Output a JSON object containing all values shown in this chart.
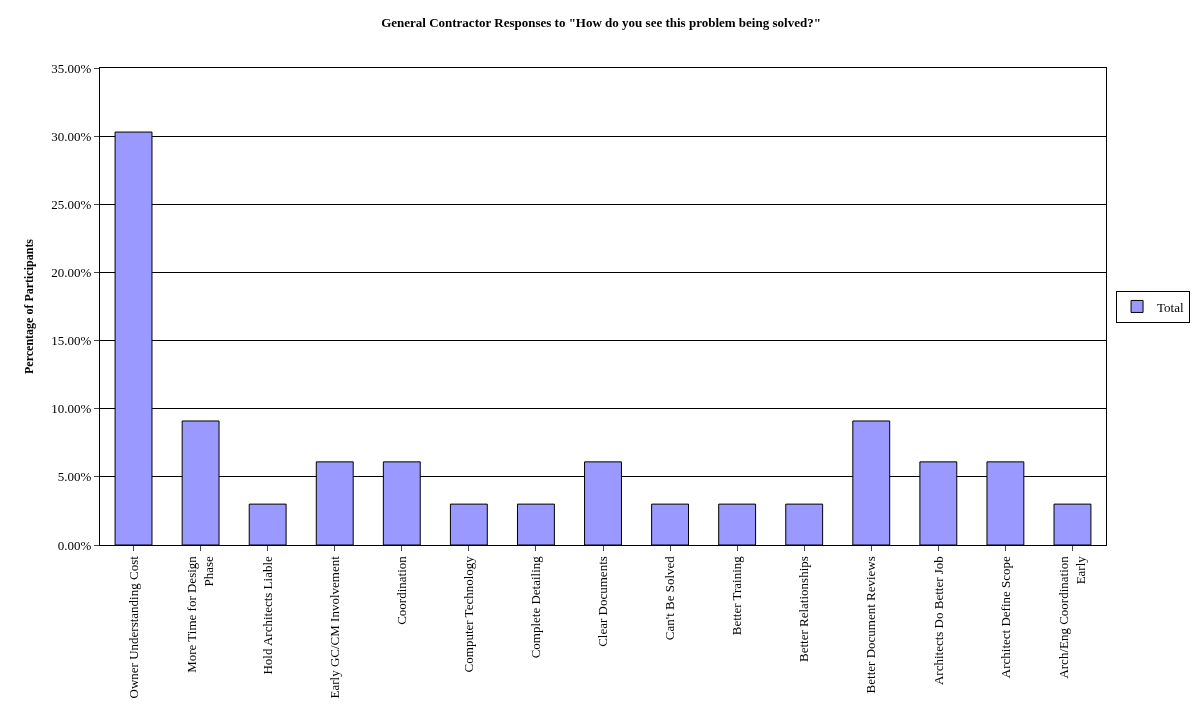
{
  "chart_data": {
    "type": "bar",
    "title": "General Contractor Responses to \"How do you see this problem being solved?\"",
    "ylabel": "Percentage of Participants",
    "categories": [
      "Owner Understanding Cost",
      "More Time for Design Phase",
      "Hold Architects Liable",
      "Early GC/CM Involvement",
      "Coordination",
      "Computer Technology",
      "Complete Detailing",
      "Clear Documents",
      "Can't Be Solved",
      "Better Training",
      "Better Relationships",
      "Better Document Reviews",
      "Architects Do Better Job",
      "Architect Define Scope",
      "Arch/Eng Coordination Early"
    ],
    "series": [
      {
        "name": "Total",
        "color": "#9999ff",
        "values": [
          30.3,
          9.1,
          3.0,
          6.1,
          6.1,
          3.0,
          3.0,
          6.1,
          3.0,
          3.0,
          3.0,
          9.1,
          6.1,
          6.1,
          3.0
        ]
      }
    ],
    "ylim": [
      0,
      35
    ],
    "yticks": [
      {
        "value": 0,
        "label": "0.00%"
      },
      {
        "value": 5,
        "label": "5.00%"
      },
      {
        "value": 10,
        "label": "10.00%"
      },
      {
        "value": 15,
        "label": "15.00%"
      },
      {
        "value": 20,
        "label": "20.00%"
      },
      {
        "value": 25,
        "label": "25.00%"
      },
      {
        "value": 30,
        "label": "30.00%"
      },
      {
        "value": 35,
        "label": "35.00%"
      }
    ],
    "grid": "y",
    "legend": "right"
  }
}
